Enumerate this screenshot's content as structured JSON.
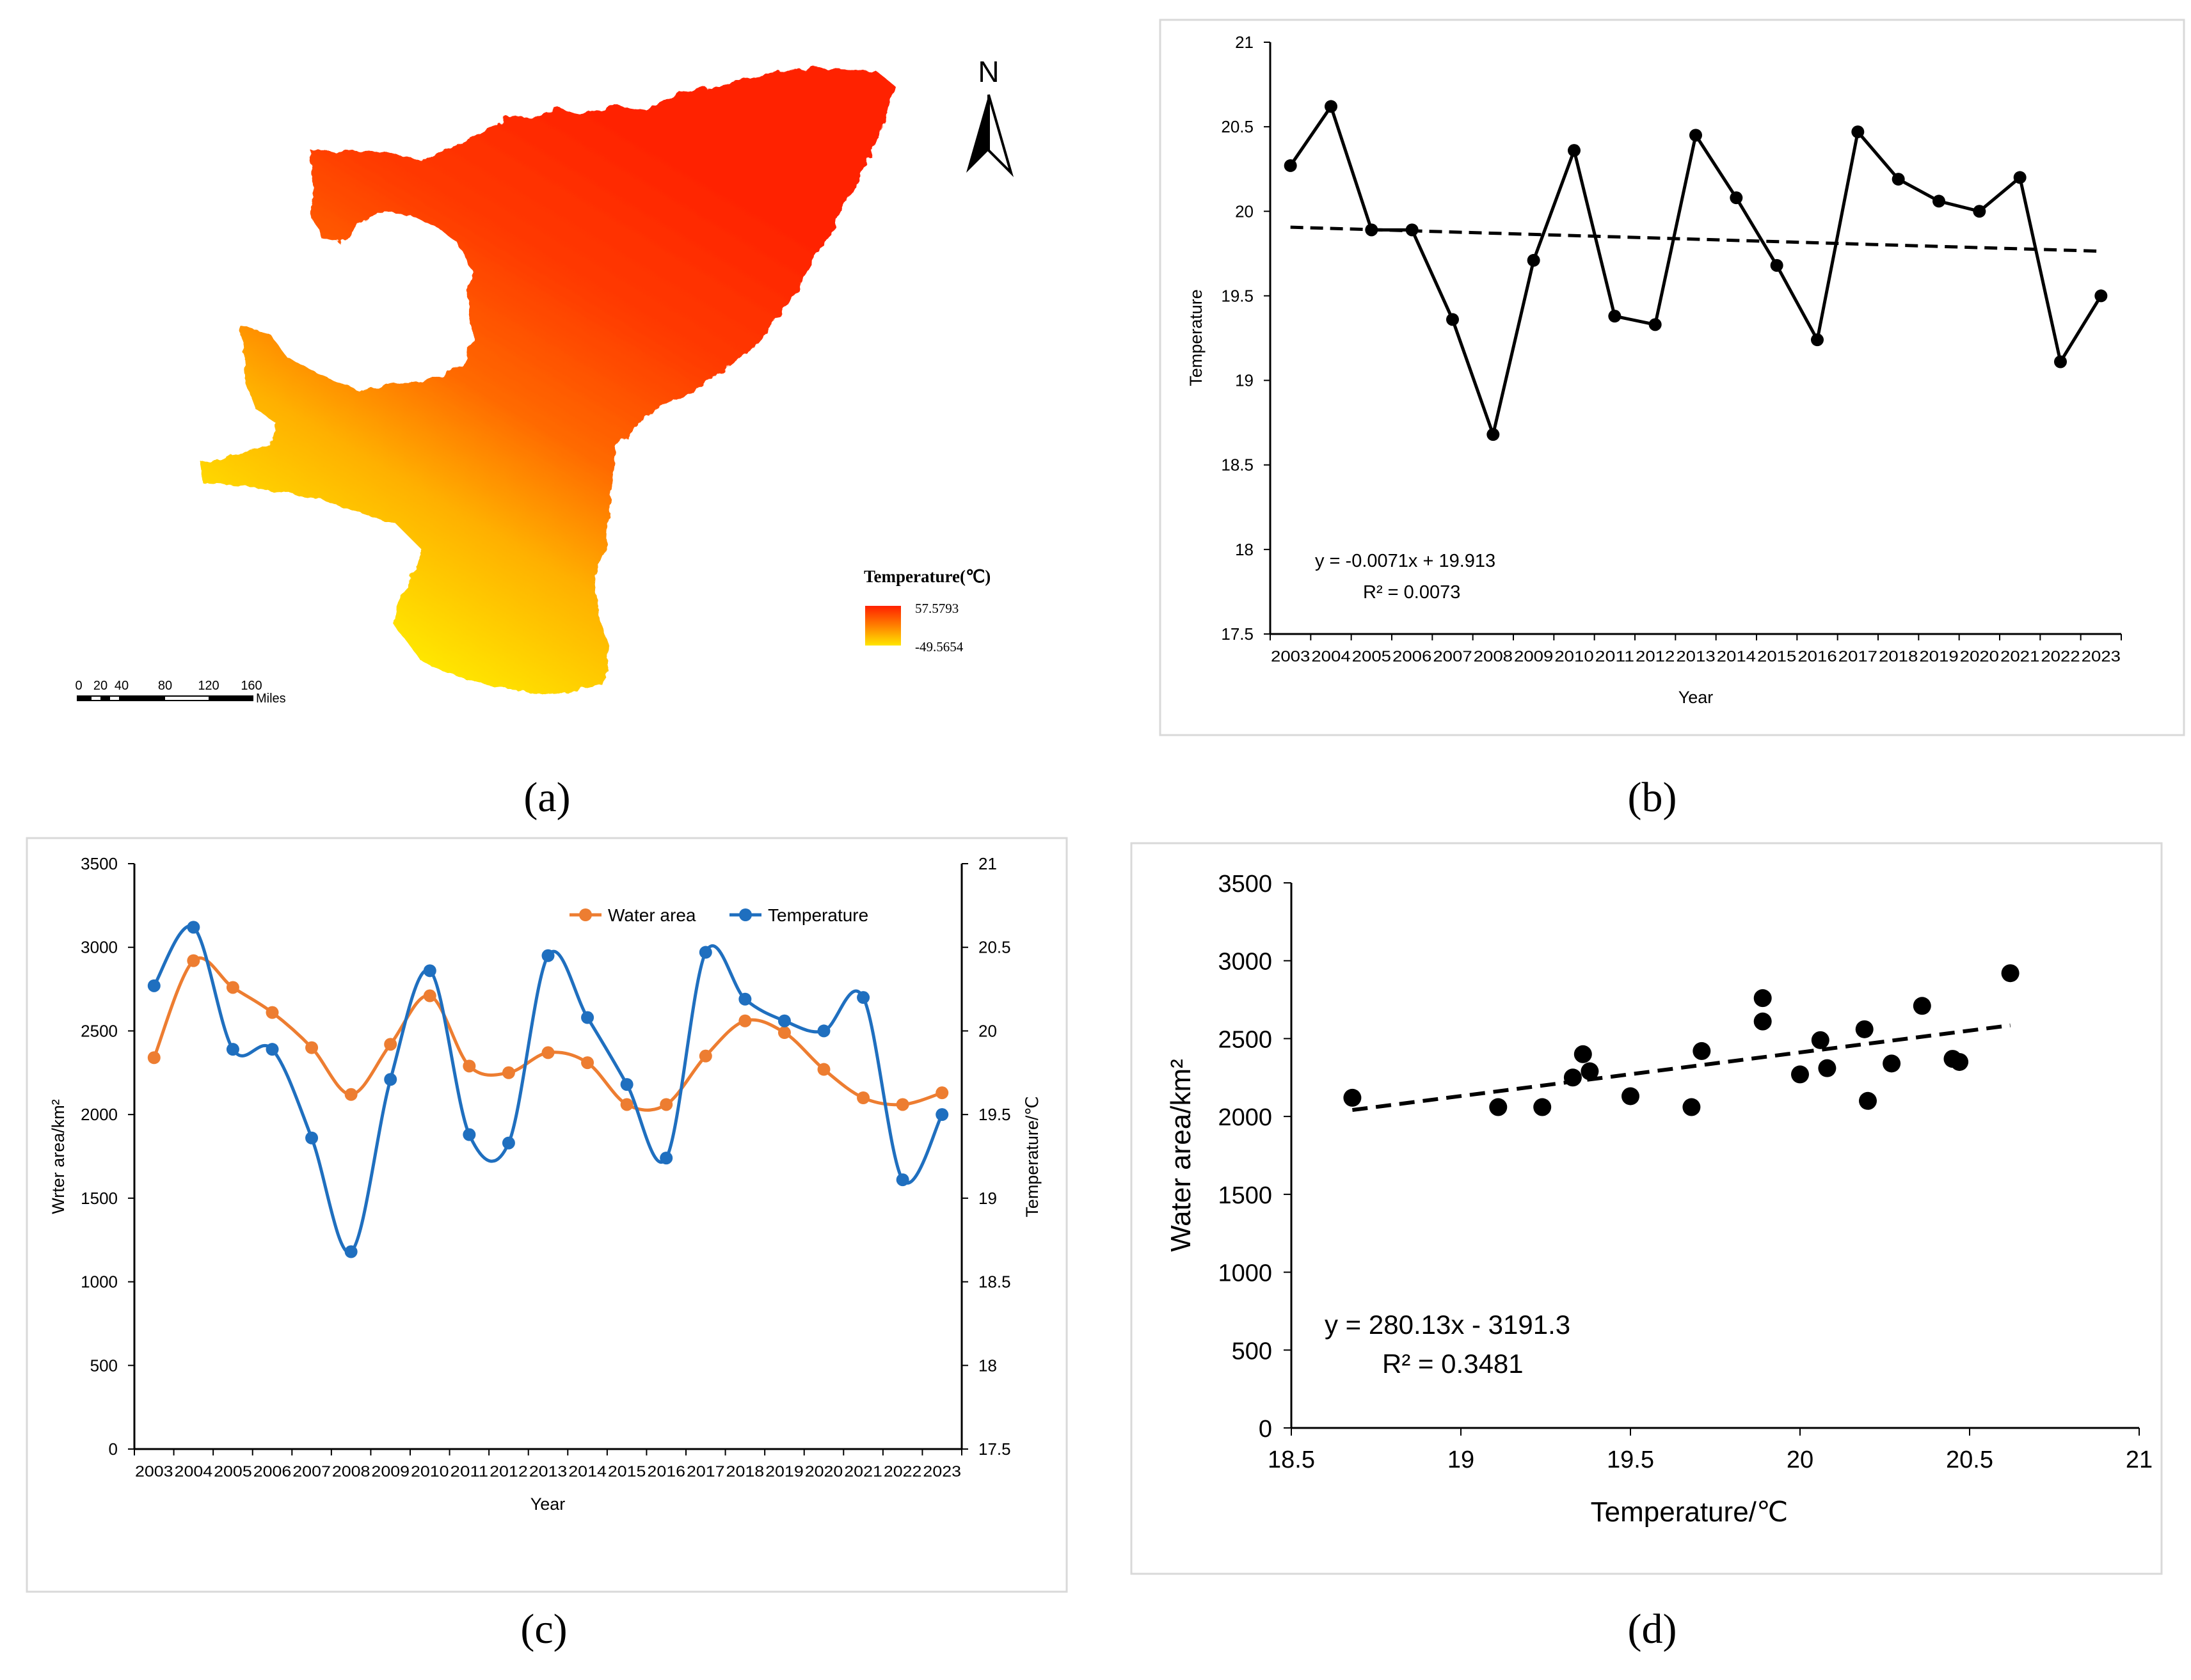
{
  "years": [
    "2003",
    "2004",
    "2005",
    "2006",
    "2007",
    "2008",
    "2009",
    "2010",
    "2011",
    "2012",
    "2013",
    "2014",
    "2015",
    "2016",
    "2017",
    "2018",
    "2019",
    "2020",
    "2021",
    "2022",
    "2023"
  ],
  "colors": {
    "water": "#ED7D31",
    "temperature": "#1F6FBF",
    "map_hot": "#ff2a00",
    "map_cold": "#ffe600",
    "ink": "#000000"
  },
  "panel_a": {
    "letter": "(a)",
    "north_label": "N",
    "legend_title": "Temperature(℃)",
    "legend_max": "57.5793",
    "legend_min": "-49.5654",
    "scalebar_ticks": [
      "0",
      "20",
      "40",
      "80",
      "120",
      "160"
    ],
    "scalebar_unit": "Miles",
    "icons": [
      "north-arrow-icon",
      "scale-bar-icon",
      "temperature-gradient-legend"
    ]
  },
  "panel_b": {
    "letter": "(b)"
  },
  "panel_c": {
    "letter": "(c)"
  },
  "panel_d": {
    "letter": "(d)"
  },
  "chart_data": [
    {
      "id": "b",
      "type": "line",
      "title": "",
      "xlabel": "Year",
      "ylabel": "Temperature",
      "ylim": [
        17.5,
        21
      ],
      "yticks": [
        "17.5",
        "18",
        "18.5",
        "19",
        "19.5",
        "20",
        "20.5",
        "21"
      ],
      "categories": [
        "2003",
        "2004",
        "2005",
        "2006",
        "2007",
        "2008",
        "2009",
        "2010",
        "2011",
        "2012",
        "2013",
        "2014",
        "2015",
        "2016",
        "2017",
        "2018",
        "2019",
        "2020",
        "2021",
        "2022",
        "2023"
      ],
      "series": [
        {
          "values": [
            20.27,
            20.62,
            19.89,
            19.89,
            19.36,
            18.68,
            19.71,
            20.36,
            19.38,
            19.33,
            20.45,
            20.08,
            19.68,
            19.24,
            20.47,
            20.19,
            20.06,
            20.0,
            20.2,
            19.11,
            19.5
          ]
        }
      ],
      "trendline": {
        "slope": -0.0071,
        "intercept": 19.913,
        "style": "dashed"
      },
      "annotations": [
        "y = -0.0071x + 19.913",
        "R² = 0.0073"
      ],
      "grid": false,
      "legend": "none"
    },
    {
      "id": "c",
      "type": "line",
      "title": "",
      "xlabel": "Year",
      "ylabel": "Wrter area/km²",
      "y2label": "Temperature/℃",
      "ylim": [
        0,
        3500
      ],
      "y2lim": [
        17.5,
        21
      ],
      "yticks": [
        "0",
        "500",
        "1000",
        "1500",
        "2000",
        "2500",
        "3000",
        "3500"
      ],
      "y2ticks": [
        "17.5",
        "18",
        "18.5",
        "19",
        "19.5",
        "20",
        "20.5",
        "21"
      ],
      "categories": [
        "2003",
        "2004",
        "2005",
        "2006",
        "2007",
        "2008",
        "2009",
        "2010",
        "2011",
        "2012",
        "2013",
        "2014",
        "2015",
        "2016",
        "2017",
        "2018",
        "2019",
        "2020",
        "2021",
        "2022",
        "2023"
      ],
      "series": [
        {
          "name": "Water area",
          "axis": "left",
          "values": [
            2340,
            2920,
            2760,
            2610,
            2400,
            2120,
            2420,
            2710,
            2290,
            2250,
            2370,
            2310,
            2060,
            2060,
            2350,
            2560,
            2490,
            2270,
            2100,
            2060,
            2130
          ]
        },
        {
          "name": "Temperature",
          "axis": "right",
          "values": [
            20.27,
            20.62,
            19.89,
            19.89,
            19.36,
            18.68,
            19.71,
            20.36,
            19.38,
            19.33,
            20.45,
            20.08,
            19.68,
            19.24,
            20.47,
            20.19,
            20.06,
            20.0,
            20.2,
            19.11,
            19.5
          ]
        }
      ],
      "smoothed": true,
      "grid": false,
      "legend": "top-right"
    },
    {
      "id": "d",
      "type": "scatter",
      "title": "",
      "xlabel": "Temperature/℃",
      "ylabel": "Water area/km²",
      "xlim": [
        18.5,
        21
      ],
      "ylim": [
        0,
        3500
      ],
      "xticks": [
        "18.5",
        "19",
        "19.5",
        "20",
        "20.5",
        "21"
      ],
      "yticks": [
        "0",
        "500",
        "1000",
        "1500",
        "2000",
        "2500",
        "3000",
        "3500"
      ],
      "points": [
        [
          18.68,
          2120
        ],
        [
          19.11,
          2060
        ],
        [
          19.24,
          2060
        ],
        [
          19.33,
          2250
        ],
        [
          19.36,
          2400
        ],
        [
          19.38,
          2290
        ],
        [
          19.5,
          2130
        ],
        [
          19.68,
          2060
        ],
        [
          19.71,
          2420
        ],
        [
          19.89,
          2760
        ],
        [
          19.89,
          2610
        ],
        [
          20.0,
          2270
        ],
        [
          20.06,
          2490
        ],
        [
          20.08,
          2310
        ],
        [
          20.19,
          2560
        ],
        [
          20.2,
          2100
        ],
        [
          20.27,
          2340
        ],
        [
          20.36,
          2710
        ],
        [
          20.45,
          2370
        ],
        [
          20.47,
          2350
        ],
        [
          20.62,
          2920
        ]
      ],
      "trendline": {
        "slope": 280.13,
        "intercept": -3191.3,
        "style": "dashed",
        "x_range": [
          18.68,
          20.62
        ]
      },
      "annotations": [
        "y = 280.13x - 3191.3",
        "R² = 0.3481"
      ],
      "grid": false,
      "legend": "none"
    }
  ]
}
